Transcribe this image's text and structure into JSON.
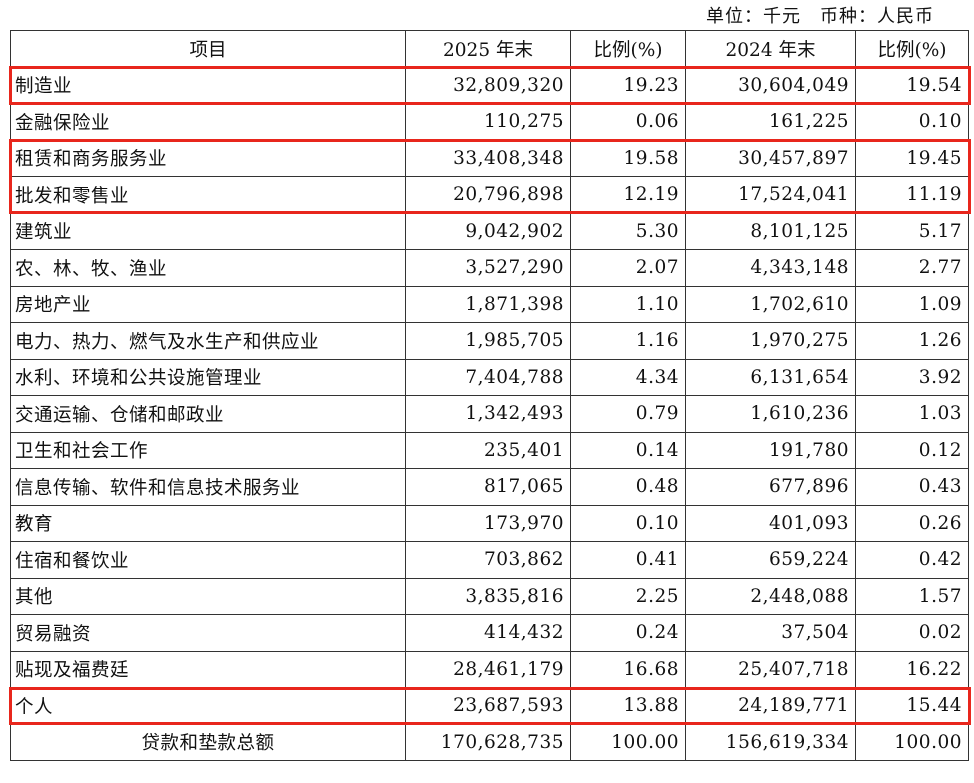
{
  "header": {
    "unit": "单位：千元　币种：人民币"
  },
  "table": {
    "columns": [
      "项目",
      "2025 年末",
      "比例(%)",
      "2024 年末",
      "比例(%)"
    ],
    "rows": [
      [
        "制造业",
        "32,809,320",
        "19.23",
        "30,604,049",
        "19.54"
      ],
      [
        "金融保险业",
        "110,275",
        "0.06",
        "161,225",
        "0.10"
      ],
      [
        "租赁和商务服务业",
        "33,408,348",
        "19.58",
        "30,457,897",
        "19.45"
      ],
      [
        "批发和零售业",
        "20,796,898",
        "12.19",
        "17,524,041",
        "11.19"
      ],
      [
        "建筑业",
        "9,042,902",
        "5.30",
        "8,101,125",
        "5.17"
      ],
      [
        "农、林、牧、渔业",
        "3,527,290",
        "2.07",
        "4,343,148",
        "2.77"
      ],
      [
        "房地产业",
        "1,871,398",
        "1.10",
        "1,702,610",
        "1.09"
      ],
      [
        "电力、热力、燃气及水生产和供应业",
        "1,985,705",
        "1.16",
        "1,970,275",
        "1.26"
      ],
      [
        "水利、环境和公共设施管理业",
        "7,404,788",
        "4.34",
        "6,131,654",
        "3.92"
      ],
      [
        "交通运输、仓储和邮政业",
        "1,342,493",
        "0.79",
        "1,610,236",
        "1.03"
      ],
      [
        "卫生和社会工作",
        "235,401",
        "0.14",
        "191,780",
        "0.12"
      ],
      [
        "信息传输、软件和信息技术服务业",
        "817,065",
        "0.48",
        "677,896",
        "0.43"
      ],
      [
        "教育",
        "173,970",
        "0.10",
        "401,093",
        "0.26"
      ],
      [
        "住宿和餐饮业",
        "703,862",
        "0.41",
        "659,224",
        "0.42"
      ],
      [
        "其他",
        "3,835,816",
        "2.25",
        "2,448,088",
        "1.57"
      ],
      [
        "贸易融资",
        "414,432",
        "0.24",
        "37,504",
        "0.02"
      ],
      [
        "贴现及福费廷",
        "28,461,179",
        "16.68",
        "25,407,718",
        "16.22"
      ],
      [
        "个人",
        "23,687,593",
        "13.88",
        "24,189,771",
        "15.44"
      ],
      [
        "贷款和垫款总额",
        "170,628,735",
        "100.00",
        "156,619,334",
        "100.00"
      ]
    ]
  }
}
